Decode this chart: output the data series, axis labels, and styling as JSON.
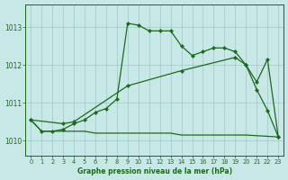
{
  "title": "Graphe pression niveau de la mer (hPa)",
  "bg_color": "#c8e8e8",
  "grid_color": "#a0c8c8",
  "line_color": "#1a6b1a",
  "xlim": [
    -0.5,
    23.5
  ],
  "ylim": [
    1009.6,
    1013.6
  ],
  "yticks": [
    1010,
    1011,
    1012,
    1013
  ],
  "xticks": [
    0,
    1,
    2,
    3,
    4,
    5,
    6,
    7,
    8,
    9,
    10,
    11,
    12,
    13,
    14,
    15,
    16,
    17,
    18,
    19,
    20,
    21,
    22,
    23
  ],
  "line_main": {
    "x": [
      0,
      1,
      2,
      3,
      4,
      5,
      6,
      7,
      8,
      9,
      10,
      11,
      12,
      13,
      14,
      15,
      16,
      17,
      18,
      19,
      20,
      21,
      22,
      23
    ],
    "y": [
      1010.55,
      1010.25,
      1010.25,
      1010.3,
      1010.45,
      1010.55,
      1010.75,
      1010.85,
      1011.1,
      1013.1,
      1013.05,
      1012.9,
      1012.9,
      1012.9,
      1012.5,
      1012.25,
      1012.35,
      1012.45,
      1012.45,
      1012.35,
      1012.0,
      1011.55,
      1012.15,
      1010.1
    ]
  },
  "line_diag": {
    "x": [
      0,
      3,
      4,
      9,
      14,
      19,
      20,
      21,
      22,
      23
    ],
    "y": [
      1010.55,
      1010.45,
      1010.5,
      1011.45,
      1011.85,
      1012.2,
      1012.0,
      1011.35,
      1010.8,
      1010.1
    ]
  },
  "line_flat": {
    "x": [
      0,
      1,
      2,
      3,
      4,
      5,
      6,
      7,
      8,
      9,
      10,
      11,
      12,
      13,
      14,
      15,
      16,
      17,
      18,
      19,
      20,
      20,
      23
    ],
    "y": [
      1010.55,
      1010.25,
      1010.25,
      1010.25,
      1010.25,
      1010.25,
      1010.2,
      1010.2,
      1010.2,
      1010.2,
      1010.2,
      1010.2,
      1010.2,
      1010.2,
      1010.15,
      1010.15,
      1010.15,
      1010.15,
      1010.15,
      1010.15,
      1010.15,
      1010.15,
      1010.1
    ]
  }
}
